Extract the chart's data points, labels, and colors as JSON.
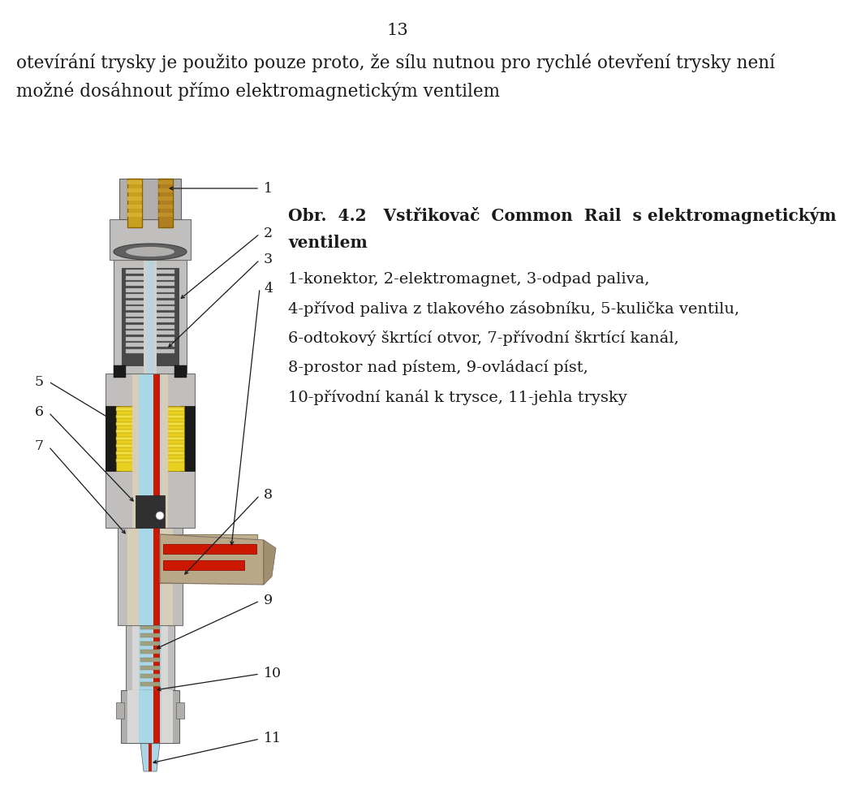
{
  "page_number": "13",
  "header_text_line1": "otevírání trysky je použito pouze proto, že sílu nutnou pro rychlé otevření trysky není",
  "header_text_line2": "možné dosáhnout přímo elektromagnetickým ventilem",
  "caption_title1": "Obr.  4.2   Vstřikovač  Common  Rail  s elektromagnetickým",
  "caption_title2": "ventilem",
  "caption_line1": "1-konektor, 2-elektromagnet, 3-odpad paliva,",
  "caption_line2": "4-přívod paliva z tlakového zásobníku, 5-kulička ventilu,",
  "caption_line3": "6-odtokový škrtící otvor, 7-přívodní škrtící kanál,",
  "caption_line4": "8-prostor nad pístem, 9-ovládací píst,",
  "caption_line5": "10-přívodní kanál k trysce, 11-jehla trysky",
  "background_color": "#ffffff",
  "text_color": "#1a1a1a",
  "font_size_header": 15.5,
  "font_size_caption_bold": 14.5,
  "font_size_caption": 14,
  "font_size_page": 15,
  "body_gray": "#c0bfbe",
  "body_gray2": "#b0afae",
  "body_gray3": "#d8d7d6",
  "inner_beige": "#d8cdb8",
  "solenoid_dark": "#2a2a2a",
  "yellow": "#e8d020",
  "blue_fuel": "#a8d8e8",
  "red_fuel": "#cc1800",
  "gold": "#b89820",
  "silver": "#909090",
  "dark_gray": "#484848"
}
